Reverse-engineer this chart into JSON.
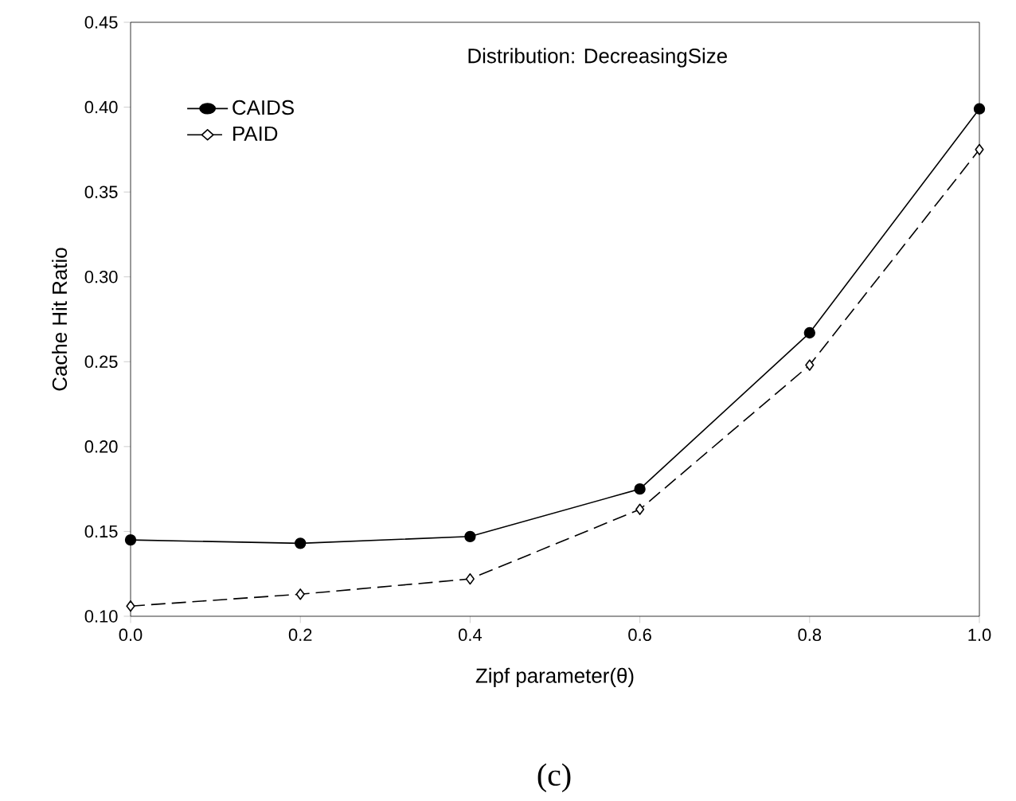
{
  "chart_data": {
    "type": "line",
    "title": "Distribution: DecreasingSize",
    "xlabel": "Zipf parameter(θ)",
    "ylabel": "Cache Hit Ratio",
    "x": [
      0.0,
      0.2,
      0.4,
      0.6,
      0.8,
      1.0
    ],
    "series": [
      {
        "name": "CAIDS",
        "color": "#000000",
        "marker": "circle",
        "line_style": "solid",
        "values": [
          0.145,
          0.143,
          0.147,
          0.175,
          0.267,
          0.399
        ]
      },
      {
        "name": "PAID",
        "color": "#000000",
        "marker": "diamond",
        "line_style": "dashed",
        "values": [
          0.106,
          0.113,
          0.122,
          0.163,
          0.248,
          0.375
        ]
      }
    ],
    "xlim": [
      0.0,
      1.0
    ],
    "xticks": [
      {
        "value": 0.0,
        "label": "0.0"
      },
      0.2,
      0.4,
      0.6,
      0.8,
      {
        "value": 1.0,
        "label": "1.0"
      }
    ],
    "ylim": [
      0.1,
      0.45
    ],
    "yticks": [
      {
        "value": 0.1,
        "label": "0.10"
      },
      0.15,
      {
        "value": 0.2,
        "label": "0.20"
      },
      0.25,
      {
        "value": 0.3,
        "label": "0.30"
      },
      0.35,
      {
        "value": 0.4,
        "label": "0.40"
      },
      0.45
    ],
    "legend": "top left",
    "grid": false,
    "annotations": [
      "(c)"
    ]
  }
}
